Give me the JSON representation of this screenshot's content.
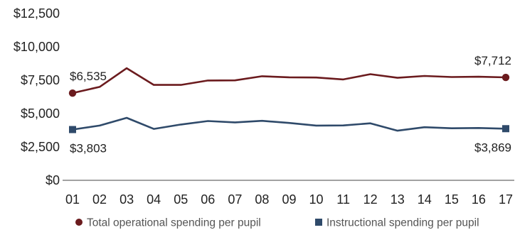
{
  "chart_data": {
    "type": "line",
    "x": [
      "01",
      "02",
      "03",
      "04",
      "05",
      "06",
      "07",
      "08",
      "09",
      "10",
      "11",
      "12",
      "13",
      "14",
      "15",
      "16",
      "17"
    ],
    "ylim": [
      0,
      12500
    ],
    "yticks": [
      0,
      2500,
      5000,
      7500,
      10000,
      12500
    ],
    "ytick_labels": [
      "$0",
      "$2,500",
      "$5,000",
      "$7,500",
      "$10,000",
      "$12,500"
    ],
    "grid": false,
    "legend_position": "bottom",
    "series": [
      {
        "name": "Total operational spending per pupil",
        "color": "#6b1b1e",
        "marker": "circle",
        "values": [
          6535,
          7000,
          8400,
          7150,
          7150,
          7480,
          7490,
          7800,
          7720,
          7700,
          7560,
          7950,
          7680,
          7820,
          7740,
          7760,
          7712
        ],
        "labels": [
          {
            "index": 0,
            "text": "$6,535",
            "placement": "above"
          },
          {
            "index": 16,
            "text": "$7,712",
            "placement": "above"
          }
        ]
      },
      {
        "name": "Instructional spending per pupil",
        "color": "#2f4a6a",
        "marker": "square",
        "values": [
          3803,
          4100,
          4680,
          3850,
          4180,
          4440,
          4340,
          4460,
          4300,
          4100,
          4110,
          4270,
          3720,
          3980,
          3900,
          3920,
          3869
        ],
        "labels": [
          {
            "index": 0,
            "text": "$3,803",
            "placement": "below"
          },
          {
            "index": 16,
            "text": "$3,869",
            "placement": "below"
          }
        ]
      }
    ]
  }
}
